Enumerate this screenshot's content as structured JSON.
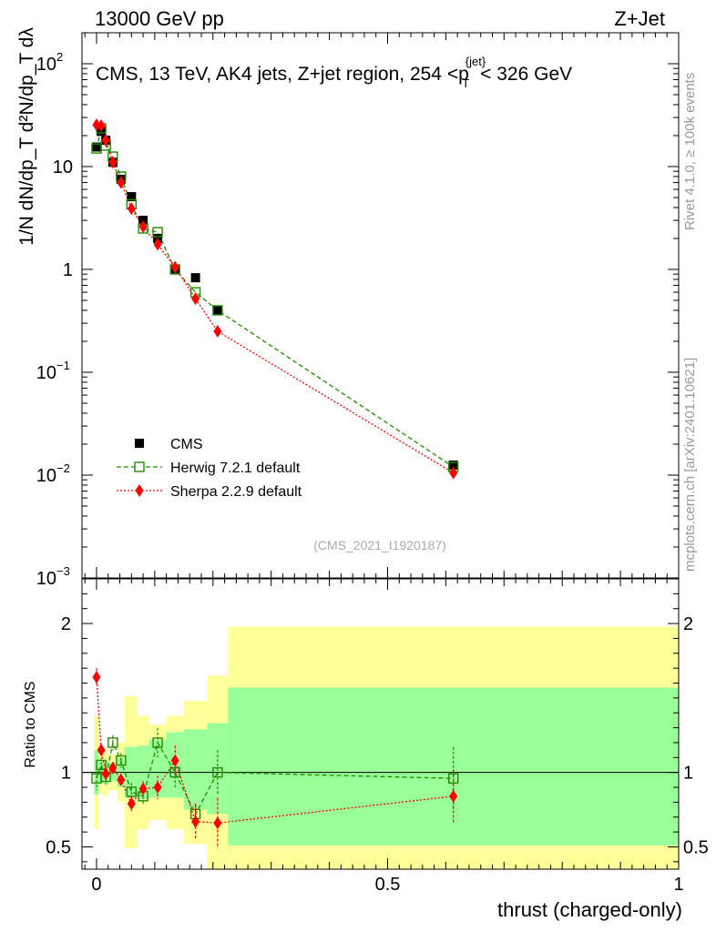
{
  "header": {
    "left": "13000 GeV pp",
    "right": "Z+Jet"
  },
  "side_labels": {
    "top": "Rivet 4.1.0, ≥ 100k events",
    "bottom": "mcplots.cern.ch [arXiv:2401.10621]"
  },
  "colors": {
    "data": "#000000",
    "herwig": "#228b00",
    "sherpa": "#ff0000",
    "band_inner": "#99ff99",
    "band_outer": "#ffff99"
  },
  "chart_data": [
    {
      "type": "scatter",
      "panel": "main",
      "title": "CMS, 13 TeV, AK4 jets, Z+jet region, 254 <p_T^{jet}< 326 GeV",
      "ylabel": "1/N dN/dp_T d²N/dp_T dλ",
      "yscale": "log",
      "ylim": [
        0.001,
        200
      ],
      "xlim": [
        -0.025,
        1.0
      ],
      "yticks": [
        {
          "v": 100,
          "label": "10",
          "sup": "2"
        },
        {
          "v": 10,
          "label": "10",
          "sup": ""
        },
        {
          "v": 1,
          "label": "1",
          "sup": ""
        },
        {
          "v": 0.1,
          "label": "10",
          "sup": "−1"
        },
        {
          "v": 0.01,
          "label": "10",
          "sup": "−2"
        },
        {
          "v": 0.001,
          "label": "10",
          "sup": "−3"
        }
      ],
      "watermark": "(CMS_2021_I1920187)",
      "series": [
        {
          "name": "CMS",
          "x": [
            0.0,
            0.008,
            0.016,
            0.028,
            0.042,
            0.06,
            0.08,
            0.105,
            0.135,
            0.17,
            0.208,
            0.613
          ],
          "y": [
            15.5,
            22,
            18,
            11,
            7.5,
            5.1,
            3.0,
            2.0,
            1.0,
            0.83,
            0.4,
            0.0125
          ]
        },
        {
          "name": "Herwig 7.2.1 default",
          "x": [
            0.0,
            0.008,
            0.016,
            0.028,
            0.042,
            0.06,
            0.08,
            0.105,
            0.135,
            0.17,
            0.208,
            0.613
          ],
          "y": [
            15,
            23.5,
            16,
            12.5,
            8,
            4.3,
            2.5,
            2.3,
            1.0,
            0.6,
            0.4,
            0.012
          ]
        },
        {
          "name": "Sherpa 2.2.9 default",
          "x": [
            0.0,
            0.008,
            0.016,
            0.028,
            0.042,
            0.06,
            0.08,
            0.105,
            0.135,
            0.17,
            0.208,
            0.613
          ],
          "y": [
            25.5,
            25,
            18,
            11,
            7,
            3.9,
            2.6,
            1.75,
            1.05,
            0.52,
            0.25,
            0.0105
          ]
        }
      ],
      "legend": [
        "CMS",
        "Herwig 7.2.1 default",
        "Sherpa 2.2.9 default"
      ],
      "legend_position": "bottom-left"
    },
    {
      "type": "line",
      "panel": "ratio",
      "ylabel": "Ratio to CMS",
      "xlabel": "thrust (charged-only)",
      "ylim": [
        0.35,
        2.3
      ],
      "xlim": [
        -0.025,
        1.0
      ],
      "yticks": [
        "0.5",
        "1",
        "2"
      ],
      "xticks": [
        "0",
        "0.5",
        "1"
      ],
      "bands": {
        "edges": [
          -0.004,
          0.004,
          0.012,
          0.02,
          0.036,
          0.048,
          0.07,
          0.09,
          0.12,
          0.15,
          0.19,
          0.226,
          1.0
        ],
        "inner_lo": [
          0.85,
          0.93,
          0.92,
          0.94,
          0.9,
          0.83,
          0.82,
          0.83,
          0.83,
          0.75,
          0.72,
          0.51
        ],
        "inner_hi": [
          1.15,
          1.07,
          1.08,
          1.06,
          1.1,
          1.17,
          1.18,
          1.22,
          1.27,
          1.29,
          1.33,
          1.57
        ],
        "outer_lo": [
          0.62,
          0.86,
          0.84,
          0.88,
          0.8,
          0.49,
          0.62,
          0.68,
          0.62,
          0.52,
          0.35,
          0.35
        ],
        "outer_hi": [
          1.38,
          1.14,
          1.16,
          1.12,
          1.2,
          1.51,
          1.38,
          1.32,
          1.38,
          1.48,
          1.65,
          1.98
        ]
      },
      "series": [
        {
          "name": "Herwig 7.2.1 default",
          "x": [
            0.0,
            0.008,
            0.016,
            0.028,
            0.042,
            0.06,
            0.08,
            0.105,
            0.135,
            0.17,
            0.208,
            0.613
          ],
          "y": [
            0.96,
            1.05,
            0.97,
            1.2,
            1.08,
            0.87,
            0.84,
            1.2,
            1.0,
            0.72,
            1.0,
            0.96
          ],
          "err": [
            0.08,
            0.05,
            0.05,
            0.05,
            0.05,
            0.06,
            0.06,
            0.1,
            0.1,
            0.06,
            0.15,
            0.21
          ]
        },
        {
          "name": "Sherpa 2.2.9 default",
          "x": [
            0.0,
            0.008,
            0.016,
            0.028,
            0.042,
            0.06,
            0.08,
            0.105,
            0.135,
            0.17,
            0.208,
            0.613
          ],
          "y": [
            1.64,
            1.15,
            0.99,
            1.03,
            0.95,
            0.79,
            0.89,
            0.9,
            1.08,
            0.67,
            0.66,
            0.84
          ],
          "err": [
            0.06,
            0.04,
            0.04,
            0.04,
            0.04,
            0.05,
            0.05,
            0.08,
            0.1,
            0.12,
            0.17,
            0.18
          ]
        }
      ]
    }
  ]
}
